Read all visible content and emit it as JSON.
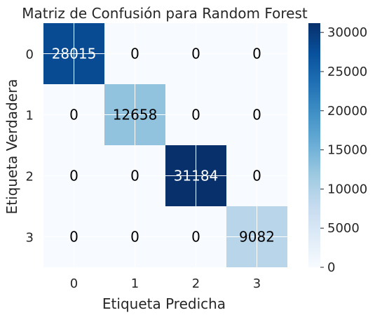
{
  "chart_data": {
    "type": "heatmap",
    "title": "Matriz de Confusión para Random Forest",
    "xlabel": "Etiqueta Predicha",
    "ylabel": "Etiqueta Verdadera",
    "x_categories": [
      "0",
      "1",
      "2",
      "3"
    ],
    "y_categories": [
      "0",
      "1",
      "2",
      "3"
    ],
    "values": [
      [
        28015,
        0,
        0,
        0
      ],
      [
        0,
        12658,
        0,
        0
      ],
      [
        0,
        0,
        31184,
        0
      ],
      [
        0,
        0,
        0,
        9082
      ]
    ],
    "colormap": "Blues",
    "colorbar": {
      "range": [
        0,
        31184
      ],
      "ticks": [
        0,
        5000,
        10000,
        15000,
        20000,
        25000,
        30000
      ],
      "tick_labels": [
        "0",
        "5000",
        "10000",
        "15000",
        "20000",
        "25000",
        "30000"
      ]
    },
    "grid": true,
    "colors": {
      "text_dark": "#000000",
      "text_light": "#ffffff",
      "grid_line": "#ffffff",
      "cmap_stops": [
        "#f7fbff",
        "#deebf7",
        "#c6dbef",
        "#9ecae1",
        "#6baed6",
        "#4292c6",
        "#2171b5",
        "#08519c",
        "#08306b"
      ]
    }
  }
}
